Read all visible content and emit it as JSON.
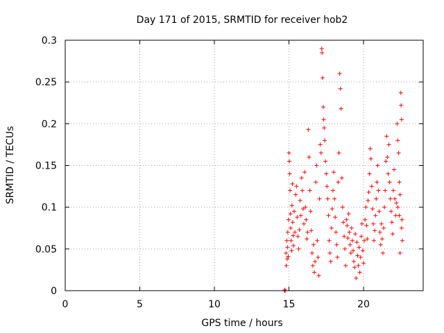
{
  "chart_data": {
    "type": "scatter",
    "title": "Day 171 of 2015, SRMTID for receiver hob2",
    "xlabel": "GPS time / hours",
    "ylabel": "SRMTID / TECUs",
    "xlim": [
      0,
      24
    ],
    "ylim": [
      0,
      0.3
    ],
    "x_ticks": [
      0,
      5,
      10,
      15,
      20
    ],
    "x_tick_labels": [
      "0",
      "5",
      "10",
      "15",
      "20"
    ],
    "y_ticks": [
      0,
      0.05,
      0.1,
      0.15,
      0.2,
      0.25,
      0.3
    ],
    "y_tick_labels": [
      "0",
      "0.05",
      "0.1",
      "0.15",
      "0.2",
      "0.25",
      "0.3"
    ],
    "grid": true,
    "marker": "plus",
    "color": "#ff0000",
    "series": [
      {
        "name": "SRMTID",
        "points": [
          [
            14.7,
            0.0
          ],
          [
            14.75,
            0.0
          ],
          [
            14.72,
            0.001
          ],
          [
            14.8,
            0.045
          ],
          [
            14.82,
            0.03
          ],
          [
            14.85,
            0.06
          ],
          [
            14.88,
            0.038
          ],
          [
            14.9,
            0.052
          ],
          [
            14.92,
            0.07
          ],
          [
            14.95,
            0.041
          ],
          [
            14.97,
            0.085
          ],
          [
            15.0,
            0.165
          ],
          [
            15.02,
            0.155
          ],
          [
            15.05,
            0.14
          ],
          [
            15.07,
            0.12
          ],
          [
            15.1,
            0.092
          ],
          [
            15.12,
            0.075
          ],
          [
            15.15,
            0.06
          ],
          [
            15.18,
            0.048
          ],
          [
            15.2,
            0.102
          ],
          [
            15.23,
            0.128
          ],
          [
            15.25,
            0.082
          ],
          [
            15.28,
            0.066
          ],
          [
            15.3,
            0.054
          ],
          [
            15.35,
            0.095
          ],
          [
            15.4,
            0.07
          ],
          [
            15.45,
            0.115
          ],
          [
            15.5,
            0.125
          ],
          [
            15.55,
            0.088
          ],
          [
            15.6,
            0.065
          ],
          [
            15.65,
            0.05
          ],
          [
            15.7,
            0.073
          ],
          [
            15.75,
            0.108
          ],
          [
            15.8,
            0.09
          ],
          [
            15.85,
            0.135
          ],
          [
            15.9,
            0.12
          ],
          [
            15.95,
            0.098
          ],
          [
            16.0,
            0.08
          ],
          [
            16.05,
            0.142
          ],
          [
            16.1,
            0.1
          ],
          [
            16.15,
            0.085
          ],
          [
            16.2,
            0.062
          ],
          [
            16.25,
            0.07
          ],
          [
            16.3,
            0.193
          ],
          [
            16.35,
            0.16
          ],
          [
            16.4,
            0.12
          ],
          [
            16.45,
            0.095
          ],
          [
            16.5,
            0.072
          ],
          [
            16.55,
            0.045
          ],
          [
            16.6,
            0.03
          ],
          [
            16.65,
            0.055
          ],
          [
            16.7,
            0.022
          ],
          [
            16.75,
            0.035
          ],
          [
            16.8,
            0.13
          ],
          [
            16.85,
            0.15
          ],
          [
            16.9,
            0.06
          ],
          [
            16.95,
            0.04
          ],
          [
            17.0,
            0.018
          ],
          [
            17.05,
            0.11
          ],
          [
            17.1,
            0.175
          ],
          [
            17.15,
            0.165
          ],
          [
            17.2,
            0.29
          ],
          [
            17.22,
            0.285
          ],
          [
            17.25,
            0.255
          ],
          [
            17.3,
            0.22
          ],
          [
            17.33,
            0.205
          ],
          [
            17.36,
            0.195
          ],
          [
            17.4,
            0.18
          ],
          [
            17.45,
            0.155
          ],
          [
            17.5,
            0.14
          ],
          [
            17.55,
            0.125
          ],
          [
            17.6,
            0.11
          ],
          [
            17.65,
            0.09
          ],
          [
            17.7,
            0.06
          ],
          [
            17.75,
            0.045
          ],
          [
            17.8,
            0.035
          ],
          [
            17.85,
            0.075
          ],
          [
            17.9,
            0.098
          ],
          [
            17.95,
            0.12
          ],
          [
            18.0,
            0.142
          ],
          [
            18.05,
            0.11
          ],
          [
            18.1,
            0.088
          ],
          [
            18.15,
            0.07
          ],
          [
            18.2,
            0.055
          ],
          [
            18.25,
            0.04
          ],
          [
            18.3,
            0.13
          ],
          [
            18.35,
            0.165
          ],
          [
            18.4,
            0.26
          ],
          [
            18.45,
            0.242
          ],
          [
            18.5,
            0.218
          ],
          [
            18.55,
            0.135
          ],
          [
            18.6,
            0.1
          ],
          [
            18.65,
            0.082
          ],
          [
            18.7,
            0.065
          ],
          [
            18.75,
            0.05
          ],
          [
            18.8,
            0.03
          ],
          [
            18.85,
            0.085
          ],
          [
            18.9,
            0.078
          ],
          [
            18.95,
            0.063
          ],
          [
            19.0,
            0.092
          ],
          [
            19.05,
            0.07
          ],
          [
            19.1,
            0.055
          ],
          [
            19.15,
            0.045
          ],
          [
            19.2,
            0.075
          ],
          [
            19.25,
            0.06
          ],
          [
            19.3,
            0.048
          ],
          [
            19.35,
            0.035
          ],
          [
            19.4,
            0.028
          ],
          [
            19.45,
            0.068
          ],
          [
            19.5,
            0.015
          ],
          [
            19.55,
            0.058
          ],
          [
            19.6,
            0.042
          ],
          [
            19.65,
            0.03
          ],
          [
            19.7,
            0.052
          ],
          [
            19.75,
            0.022
          ],
          [
            19.8,
            0.04
          ],
          [
            19.85,
            0.065
          ],
          [
            19.9,
            0.08
          ],
          [
            19.95,
            0.048
          ],
          [
            20.0,
            0.033
          ],
          [
            20.05,
            0.06
          ],
          [
            20.1,
            0.085
          ],
          [
            20.15,
            0.1
          ],
          [
            20.2,
            0.078
          ],
          [
            20.25,
            0.062
          ],
          [
            20.3,
            0.108
          ],
          [
            20.35,
            0.118
          ],
          [
            20.4,
            0.14
          ],
          [
            20.45,
            0.17
          ],
          [
            20.5,
            0.158
          ],
          [
            20.55,
            0.125
          ],
          [
            20.6,
            0.098
          ],
          [
            20.65,
            0.08
          ],
          [
            20.7,
            0.06
          ],
          [
            20.75,
            0.072
          ],
          [
            20.8,
            0.09
          ],
          [
            20.85,
            0.11
          ],
          [
            20.9,
            0.13
          ],
          [
            20.95,
            0.15
          ],
          [
            21.0,
            0.12
          ],
          [
            21.05,
            0.095
          ],
          [
            21.1,
            0.07
          ],
          [
            21.15,
            0.055
          ],
          [
            21.2,
            0.08
          ],
          [
            21.25,
            0.062
          ],
          [
            21.3,
            0.045
          ],
          [
            21.35,
            0.075
          ],
          [
            21.4,
            0.1
          ],
          [
            21.45,
            0.12
          ],
          [
            21.5,
            0.155
          ],
          [
            21.55,
            0.185
          ],
          [
            21.6,
            0.16
          ],
          [
            21.65,
            0.14
          ],
          [
            21.7,
            0.175
          ],
          [
            21.75,
            0.13
          ],
          [
            21.8,
            0.11
          ],
          [
            21.85,
            0.095
          ],
          [
            21.9,
            0.082
          ],
          [
            21.95,
            0.068
          ],
          [
            22.0,
            0.12
          ],
          [
            22.05,
            0.145
          ],
          [
            22.1,
            0.11
          ],
          [
            22.15,
            0.09
          ],
          [
            22.2,
            0.105
          ],
          [
            22.25,
            0.2
          ],
          [
            22.3,
            0.18
          ],
          [
            22.35,
            0.165
          ],
          [
            22.4,
            0.13
          ],
          [
            22.45,
            0.115
          ],
          [
            22.5,
            0.237
          ],
          [
            22.52,
            0.222
          ],
          [
            22.55,
            0.205
          ],
          [
            22.58,
            0.085
          ],
          [
            22.6,
            0.06
          ],
          [
            22.45,
            0.045
          ],
          [
            22.55,
            0.075
          ],
          [
            22.4,
            0.09
          ],
          [
            22.3,
            0.1
          ]
        ]
      }
    ]
  }
}
